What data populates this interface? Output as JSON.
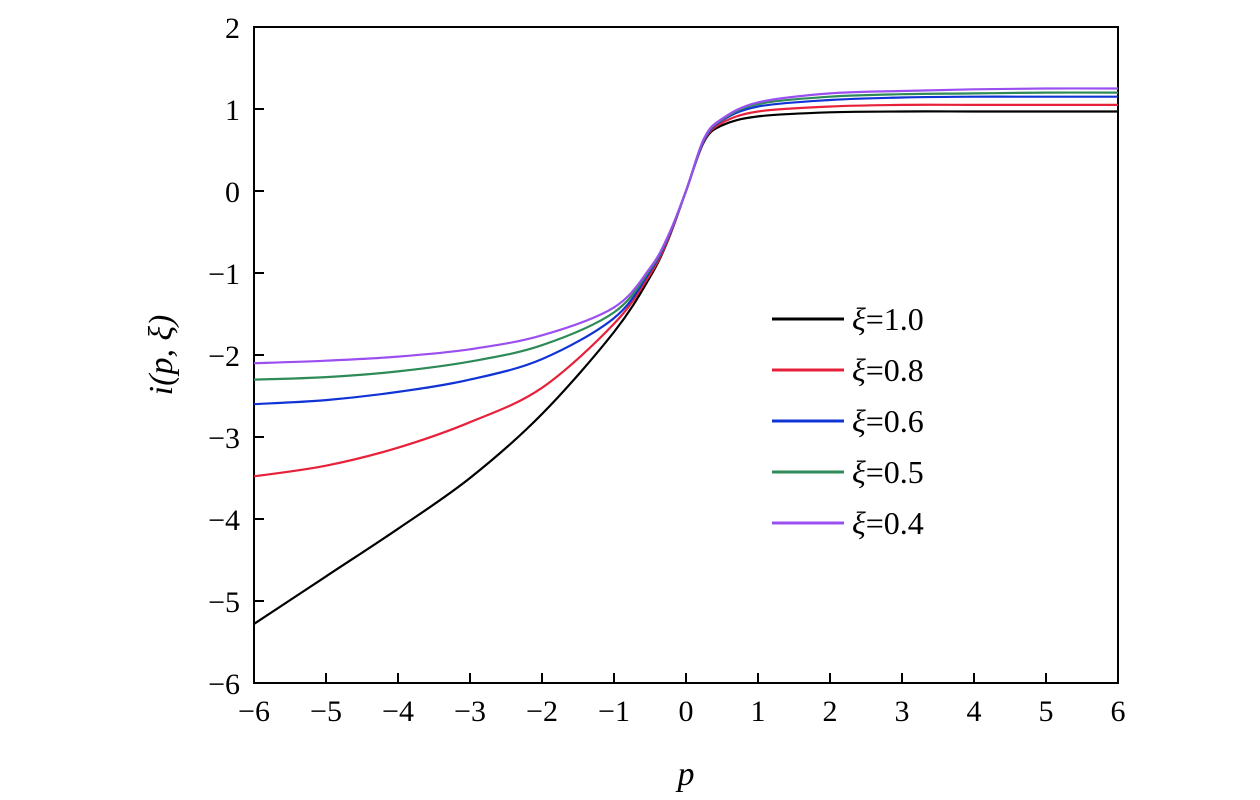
{
  "chart_data": {
    "type": "line",
    "xlabel": "p",
    "ylabel": "i(p, ξ)",
    "xlim": [
      -6,
      6
    ],
    "ylim": [
      -6,
      2
    ],
    "xticks": [
      "−6",
      "−5",
      "−4",
      "−3",
      "−2",
      "−1",
      "0",
      "1",
      "2",
      "3",
      "4",
      "5",
      "6"
    ],
    "yticks": [
      "2",
      "1",
      "0",
      "−1",
      "−2",
      "−3",
      "−4",
      "−5",
      "−6"
    ],
    "grid": false,
    "legend_position": "right",
    "x": [
      -6,
      -5,
      -4,
      -3,
      -2,
      -1,
      -0.5,
      -0.25,
      0,
      0.25,
      0.5,
      1,
      2,
      3,
      4,
      5,
      6
    ],
    "series": [
      {
        "name": "ξ=1.0",
        "symbol": "ξ",
        "value_label": "=1.0",
        "color": "#000000",
        "values": [
          -5.28,
          -4.7,
          -4.12,
          -3.5,
          -2.72,
          -1.72,
          -1.05,
          -0.6,
          0.0,
          0.6,
          0.8,
          0.91,
          0.96,
          0.97,
          0.97,
          0.97,
          0.97
        ]
      },
      {
        "name": "ξ=0.8",
        "symbol": "ξ",
        "value_label": "=0.8",
        "color": "#e8213b",
        "values": [
          -3.48,
          -3.35,
          -3.13,
          -2.82,
          -2.4,
          -1.62,
          -1.02,
          -0.59,
          0.0,
          0.61,
          0.83,
          0.97,
          1.03,
          1.05,
          1.05,
          1.05,
          1.05
        ]
      },
      {
        "name": "ξ=0.6",
        "symbol": "ξ",
        "value_label": "=0.6",
        "color": "#1033d6",
        "values": [
          -2.6,
          -2.55,
          -2.45,
          -2.3,
          -2.05,
          -1.55,
          -0.98,
          -0.57,
          0.0,
          0.62,
          0.86,
          1.03,
          1.11,
          1.14,
          1.15,
          1.15,
          1.15
        ]
      },
      {
        "name": "ξ=0.5",
        "symbol": "ξ",
        "value_label": "=0.5",
        "color": "#2e8b57",
        "values": [
          -2.3,
          -2.27,
          -2.2,
          -2.08,
          -1.88,
          -1.48,
          -0.96,
          -0.56,
          0.0,
          0.63,
          0.87,
          1.06,
          1.15,
          1.18,
          1.19,
          1.2,
          1.2
        ]
      },
      {
        "name": "ξ=0.4",
        "symbol": "ξ",
        "value_label": "=0.4",
        "color": "#9b4ff0",
        "values": [
          -2.1,
          -2.07,
          -2.02,
          -1.93,
          -1.76,
          -1.42,
          -0.94,
          -0.55,
          0.0,
          0.64,
          0.88,
          1.08,
          1.19,
          1.22,
          1.24,
          1.25,
          1.25
        ]
      }
    ]
  }
}
